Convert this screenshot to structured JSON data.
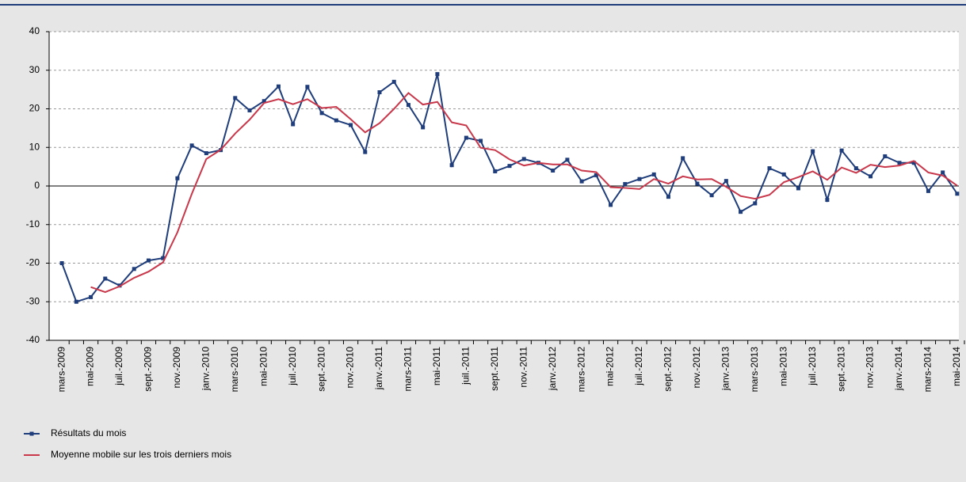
{
  "chart_data": {
    "type": "line",
    "categories": [
      "mars-2009",
      null,
      "mai-2009",
      null,
      "juil.-2009",
      null,
      "sept.-2009",
      null,
      "nov.-2009",
      null,
      "janv.-2010",
      null,
      "mars-2010",
      null,
      "mai-2010",
      null,
      "juil.-2010",
      null,
      "sept.-2010",
      null,
      "nov.-2010",
      null,
      "janv.-2011",
      null,
      "mars-2011",
      null,
      "mai-2011",
      null,
      "juil.-2011",
      null,
      "sept.-2011",
      null,
      "nov.-2011",
      null,
      "janv.-2012",
      null,
      "mars-2012",
      null,
      "mai-2012",
      null,
      "juil.-2012",
      null,
      "sept.-2012",
      null,
      "nov.-2012",
      null,
      "janv.-2013",
      null,
      "mars-2013",
      null,
      "mai-2013",
      null,
      "juil.-2013",
      null,
      "sept.-2013",
      null,
      "nov.-2013",
      null,
      "janv.-2014",
      null,
      "mars-2014",
      null,
      "mai-2014"
    ],
    "series": [
      {
        "name": "Résultats du mois",
        "color": "#1f3d7a",
        "marker": "square",
        "values": [
          -20,
          -30,
          -28.8,
          -24,
          -25.8,
          -21.5,
          -19.3,
          -18.7,
          2,
          10.5,
          8.5,
          9.3,
          22.8,
          19.6,
          22,
          25.8,
          16,
          25.7,
          18.9,
          17,
          15.8,
          8.8,
          24.3,
          27,
          21,
          15.2,
          29,
          5.4,
          12.5,
          11.7,
          3.8,
          5.2,
          7,
          6,
          4,
          6.8,
          1.2,
          2.8,
          -4.9,
          0.5,
          1.8,
          3,
          -2.8,
          7.2,
          0.6,
          -2.4,
          1.3,
          -6.7,
          -4.5,
          4.6,
          3,
          -0.6,
          9,
          -3.6,
          9.2,
          4.6,
          2.5,
          7.7,
          6,
          6,
          -1.3,
          3.5,
          -2
        ]
      },
      {
        "name": "Moyenne mobile sur les trois derniers mois",
        "color": "#c8374a",
        "marker": "none",
        "values": [
          null,
          null,
          -26.2,
          -27.5,
          -26,
          -23.8,
          -22.2,
          -19.8,
          -12,
          -2,
          7,
          9.4,
          13.6,
          17.2,
          21.5,
          22.5,
          21.2,
          22.5,
          20.2,
          20.5,
          17.3,
          13.9,
          16.3,
          20,
          24.1,
          21.1,
          21.8,
          16.5,
          15.7,
          9.9,
          9.3,
          6.9,
          5.3,
          6,
          5.6,
          5.6,
          4,
          3.6,
          -0.3,
          -0.5,
          -0.8,
          1.8,
          0.6,
          2.5,
          1.7,
          1.8,
          -0.2,
          -2.6,
          -3.3,
          -2.3,
          1,
          2.3,
          3.8,
          1.6,
          4.8,
          3.4,
          5.5,
          4.9,
          5.3,
          6.5,
          3.5,
          2.7,
          0.1
        ]
      }
    ],
    "ylim": [
      -40,
      40
    ],
    "yticks": [
      -40,
      -30,
      -20,
      -10,
      0,
      10,
      20,
      30,
      40
    ],
    "grid": true,
    "legend": "bottom-left"
  }
}
